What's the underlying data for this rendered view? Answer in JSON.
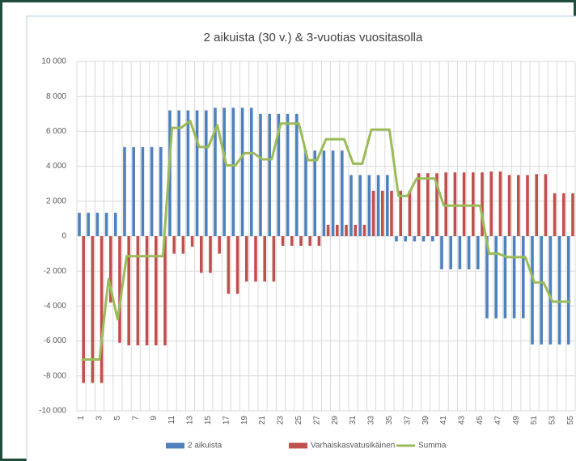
{
  "chart_data": {
    "type": "bar",
    "title": "2 aikuista (30 v.) & 3-vuotias vuositasolla",
    "categories": [
      "1",
      null,
      "3",
      null,
      "5",
      null,
      "7",
      null,
      "9",
      null,
      "11",
      null,
      "13",
      null,
      "15",
      null,
      "17",
      null,
      "19",
      null,
      "21",
      null,
      "23",
      null,
      "25",
      null,
      "27",
      null,
      "29",
      null,
      "31",
      null,
      "33",
      null,
      "35",
      null,
      "37",
      null,
      "39",
      null,
      "41",
      null,
      "43",
      null,
      "45",
      null,
      "47",
      null,
      "49",
      null,
      "51",
      null,
      "53",
      null,
      "55"
    ],
    "series": [
      {
        "name": "2 aikuista",
        "type": "bar",
        "color": "#4f81bd",
        "values": [
          1340,
          1340,
          1340,
          1340,
          1340,
          5100,
          5100,
          5100,
          5100,
          5100,
          7200,
          7200,
          7200,
          7200,
          7200,
          7350,
          7350,
          7350,
          7350,
          7350,
          7000,
          7000,
          7000,
          7000,
          7000,
          4900,
          4900,
          4900,
          4900,
          4900,
          3500,
          3500,
          3500,
          3500,
          3500,
          -300,
          -300,
          -300,
          -300,
          -300,
          -1900,
          -1900,
          -1900,
          -1900,
          -1900,
          -4700,
          -4700,
          -4700,
          -4700,
          -4700,
          -6200,
          -6200,
          -6200,
          -6200,
          -6200
        ]
      },
      {
        "name": "Varhaiskasvatusikäinen",
        "type": "bar",
        "color": "#c0504d",
        "values": [
          -8400,
          -8400,
          -8400,
          -3800,
          -6100,
          -6250,
          -6250,
          -6250,
          -6250,
          -6250,
          -1000,
          -1000,
          -600,
          -2100,
          -2100,
          -1000,
          -3300,
          -3300,
          -2600,
          -2600,
          -2600,
          -2600,
          -550,
          -550,
          -550,
          -550,
          -550,
          650,
          650,
          650,
          650,
          650,
          2600,
          2600,
          2600,
          2600,
          2600,
          3600,
          3600,
          3600,
          3650,
          3650,
          3650,
          3650,
          3650,
          3700,
          3700,
          3500,
          3500,
          3500,
          3550,
          3550,
          2450,
          2450,
          2450
        ]
      },
      {
        "name": "Summa",
        "type": "line",
        "color": "#9bbb59",
        "values": [
          -7060,
          -7060,
          -7060,
          -2460,
          -4760,
          -1150,
          -1150,
          -1150,
          -1150,
          -1150,
          6200,
          6200,
          6600,
          5100,
          5100,
          6350,
          4050,
          4050,
          4750,
          4750,
          4400,
          4400,
          6450,
          6450,
          6450,
          4350,
          4350,
          5550,
          5550,
          5550,
          4150,
          4150,
          6100,
          6100,
          6100,
          2300,
          2300,
          3300,
          3300,
          3300,
          1750,
          1750,
          1750,
          1750,
          1750,
          -1000,
          -1000,
          -1200,
          -1200,
          -1200,
          -2650,
          -2650,
          -3750,
          -3750,
          -3750
        ]
      }
    ],
    "ylim": [
      -10000,
      10000
    ],
    "yticks": [
      {
        "value": -10000,
        "label": "-10 000"
      },
      {
        "value": -8000,
        "label": "-8 000"
      },
      {
        "value": -6000,
        "label": "-6 000"
      },
      {
        "value": -4000,
        "label": "-4 000"
      },
      {
        "value": -2000,
        "label": "-2 000"
      },
      0,
      {
        "value": 2000,
        "label": "2 000"
      },
      {
        "value": 4000,
        "label": "4 000"
      },
      {
        "value": 6000,
        "label": "6 000"
      },
      {
        "value": 8000,
        "label": "8 000"
      },
      {
        "value": 10000,
        "label": "10 000"
      }
    ],
    "grid": true,
    "legend": "bottom"
  }
}
